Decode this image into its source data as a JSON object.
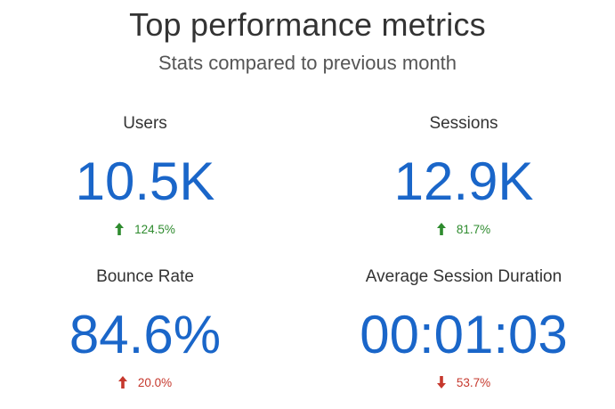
{
  "header": {
    "title": "Top performance metrics",
    "subtitle": "Stats compared to previous month"
  },
  "metrics": [
    {
      "label": "Users",
      "value": "10.5K",
      "change": "124.5%",
      "direction": "up",
      "color": "#2e8b2e",
      "icon": "arrow-up-icon"
    },
    {
      "label": "Sessions",
      "value": "12.9K",
      "change": "81.7%",
      "direction": "up",
      "color": "#2e8b2e",
      "icon": "arrow-up-icon"
    },
    {
      "label": "Bounce Rate",
      "value": "84.6%",
      "change": "20.0%",
      "direction": "up",
      "color": "#c6382d",
      "icon": "arrow-up-icon"
    },
    {
      "label": "Average Session Duration",
      "value": "00:01:03",
      "change": "53.7%",
      "direction": "down",
      "color": "#c6382d",
      "icon": "arrow-down-icon"
    }
  ],
  "colors": {
    "value": "#1a66c9",
    "positive": "#2e8b2e",
    "negative": "#c6382d"
  }
}
